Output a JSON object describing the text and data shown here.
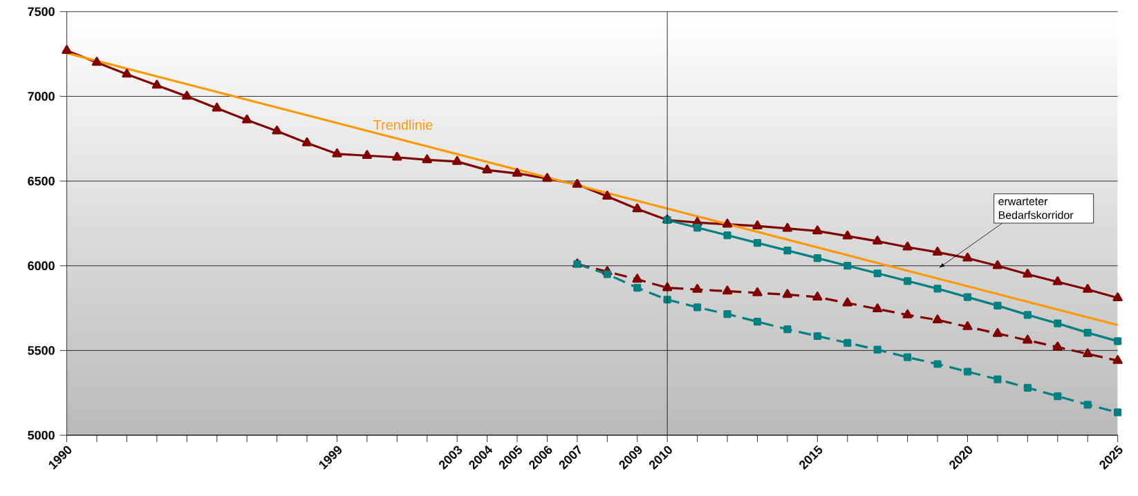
{
  "chart_data": {
    "type": "line",
    "x": [
      1990,
      1991,
      1992,
      1993,
      1994,
      1995,
      1996,
      1997,
      1998,
      1999,
      2000,
      2001,
      2002,
      2003,
      2004,
      2005,
      2006,
      2007,
      2008,
      2009,
      2010,
      2011,
      2012,
      2013,
      2014,
      2015,
      2016,
      2017,
      2018,
      2019,
      2020,
      2021,
      2022,
      2023,
      2024,
      2025
    ],
    "series": [
      {
        "color": "#800000",
        "marker": "triangle",
        "line_style": "solid",
        "values": [
          7270,
          7200,
          7130,
          7065,
          7000,
          6930,
          6860,
          6795,
          6725,
          6660,
          6650,
          6640,
          6625,
          6615,
          6565,
          6545,
          6515,
          6480,
          6410,
          6335,
          6270,
          6255,
          6245,
          6235,
          6220,
          6205,
          6175,
          6145,
          6110,
          6080,
          6045,
          6000,
          5950,
          5905,
          5860,
          5810
        ]
      },
      {
        "color": "#008080",
        "marker": "square",
        "line_style": "solid",
        "x": [
          2010,
          2011,
          2012,
          2013,
          2014,
          2015,
          2016,
          2017,
          2018,
          2019,
          2020,
          2021,
          2022,
          2023,
          2024,
          2025
        ],
        "values": [
          6270,
          6225,
          6180,
          6135,
          6090,
          6045,
          6000,
          5955,
          5910,
          5865,
          5815,
          5765,
          5710,
          5660,
          5605,
          5555
        ]
      },
      {
        "color": "#800000",
        "marker": "triangle",
        "line_style": "dashed",
        "x": [
          2007,
          2008,
          2009,
          2010,
          2011,
          2012,
          2013,
          2014,
          2015,
          2016,
          2017,
          2018,
          2019,
          2020,
          2021,
          2022,
          2023,
          2024,
          2025
        ],
        "values": [
          6010,
          5965,
          5920,
          5870,
          5860,
          5850,
          5840,
          5830,
          5815,
          5780,
          5745,
          5710,
          5680,
          5640,
          5600,
          5560,
          5520,
          5480,
          5440
        ]
      },
      {
        "color": "#008080",
        "marker": "square",
        "line_style": "dashed",
        "x": [
          2007,
          2008,
          2009,
          2010,
          2011,
          2012,
          2013,
          2014,
          2015,
          2016,
          2017,
          2018,
          2019,
          2020,
          2021,
          2022,
          2023,
          2024,
          2025
        ],
        "values": [
          6010,
          5950,
          5870,
          5800,
          5755,
          5715,
          5670,
          5625,
          5585,
          5545,
          5505,
          5460,
          5420,
          5375,
          5330,
          5280,
          5230,
          5180,
          5135
        ]
      },
      {
        "name": "Trendlinie",
        "color": "#ff9900",
        "marker": "none",
        "line_style": "solid",
        "x": [
          1990,
          2025
        ],
        "values": [
          7255,
          5650
        ]
      }
    ],
    "xlim": [
      1990,
      2025
    ],
    "ylim": [
      5000,
      7500
    ],
    "xticks": [
      1990,
      {
        "value": 1991,
        "label": null
      },
      {
        "value": 1992,
        "label": null
      },
      {
        "value": 1993,
        "label": null
      },
      {
        "value": 1994,
        "label": null
      },
      {
        "value": 1995,
        "label": null
      },
      {
        "value": 1996,
        "label": null
      },
      {
        "value": 1997,
        "label": null
      },
      {
        "value": 1998,
        "label": null
      },
      1999,
      {
        "value": 2000,
        "label": null
      },
      {
        "value": 2001,
        "label": null
      },
      {
        "value": 2002,
        "label": null
      },
      2003,
      2004,
      2005,
      2006,
      2007,
      {
        "value": 2008,
        "label": null
      },
      2009,
      2010,
      {
        "value": 2011,
        "label": null
      },
      {
        "value": 2012,
        "label": null
      },
      {
        "value": 2013,
        "label": null
      },
      {
        "value": 2014,
        "label": null
      },
      2015,
      {
        "value": 2016,
        "label": null
      },
      {
        "value": 2017,
        "label": null
      },
      {
        "value": 2018,
        "label": null
      },
      {
        "value": 2019,
        "label": null
      },
      2020,
      {
        "value": 2021,
        "label": null
      },
      {
        "value": 2022,
        "label": null
      },
      {
        "value": 2023,
        "label": null
      },
      {
        "value": 2024,
        "label": null
      },
      2025
    ],
    "yticks": [
      5000,
      5500,
      6000,
      6500,
      7000,
      7500
    ],
    "grid": "y",
    "ref_lines": [
      {
        "axis": "x",
        "value": 2010,
        "color": "#000000"
      }
    ],
    "annotations": [
      "erwarteter Bedarfskorridor"
    ]
  }
}
